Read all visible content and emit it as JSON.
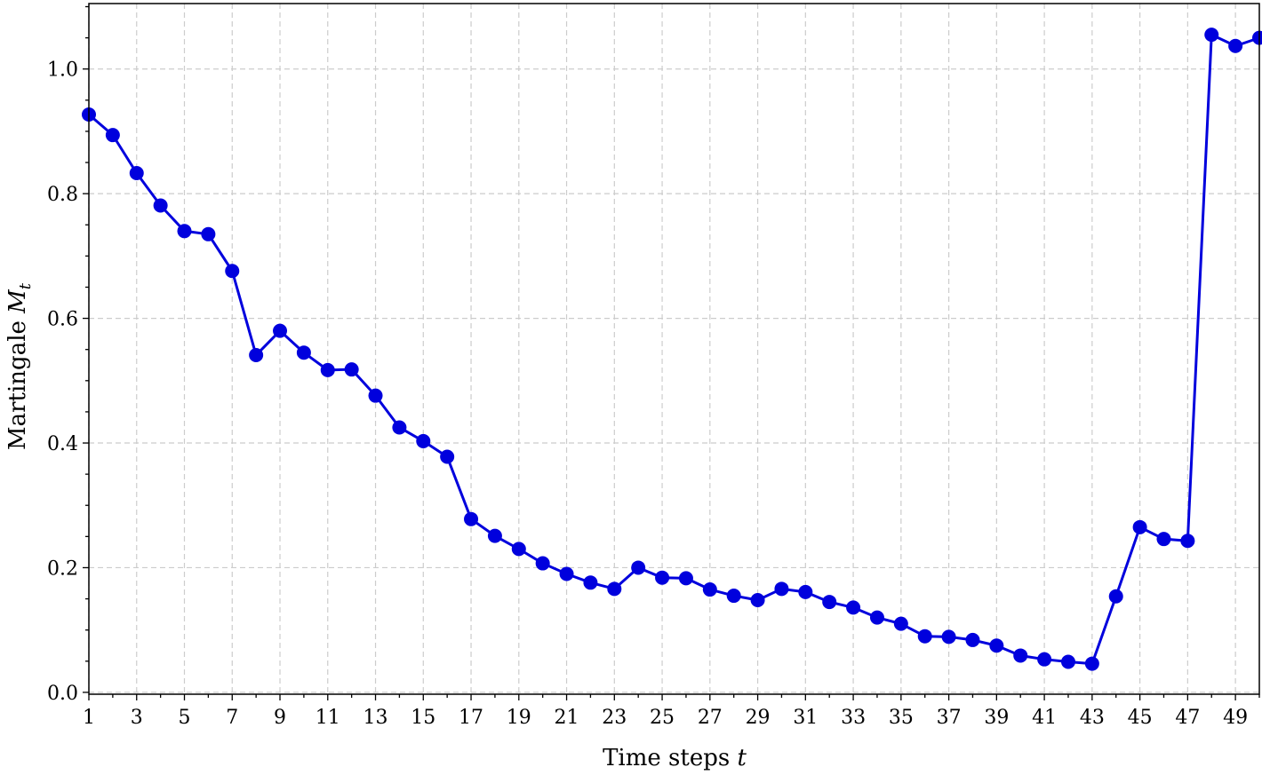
{
  "chart_data": {
    "type": "line",
    "xlabel": "Time steps",
    "xlabel_var": "t",
    "ylabel": "Martingale",
    "ylabel_var": "M",
    "ylabel_sub": "t",
    "xlim": [
      1,
      50
    ],
    "ylim": [
      -0.003,
      1.105
    ],
    "grid": true,
    "x_ticks": [
      1,
      3,
      5,
      7,
      9,
      11,
      13,
      15,
      17,
      19,
      21,
      23,
      25,
      27,
      29,
      31,
      33,
      35,
      37,
      39,
      41,
      43,
      45,
      47,
      49
    ],
    "y_ticks": [
      0.0,
      0.2,
      0.4,
      0.6,
      0.8,
      1.0
    ],
    "y_tick_labels": [
      "0.0",
      "0.2",
      "0.4",
      "0.6",
      "0.8",
      "1.0"
    ],
    "series_color": "#0000dd",
    "x": [
      1,
      2,
      3,
      4,
      5,
      6,
      7,
      8,
      9,
      10,
      11,
      12,
      13,
      14,
      15,
      16,
      17,
      18,
      19,
      20,
      21,
      22,
      23,
      24,
      25,
      26,
      27,
      28,
      29,
      30,
      31,
      32,
      33,
      34,
      35,
      36,
      37,
      38,
      39,
      40,
      41,
      42,
      43,
      44,
      45,
      46,
      47,
      48,
      49,
      50
    ],
    "values": [
      0.927,
      0.894,
      0.833,
      0.781,
      0.74,
      0.735,
      0.676,
      0.541,
      0.58,
      0.545,
      0.517,
      0.518,
      0.476,
      0.425,
      0.403,
      0.378,
      0.278,
      0.251,
      0.23,
      0.207,
      0.19,
      0.176,
      0.166,
      0.2,
      0.184,
      0.183,
      0.165,
      0.155,
      0.148,
      0.166,
      0.161,
      0.145,
      0.136,
      0.12,
      0.11,
      0.09,
      0.089,
      0.084,
      0.075,
      0.059,
      0.053,
      0.049,
      0.046,
      0.154,
      0.265,
      0.246,
      0.243,
      1.055,
      1.037,
      1.05
    ]
  }
}
